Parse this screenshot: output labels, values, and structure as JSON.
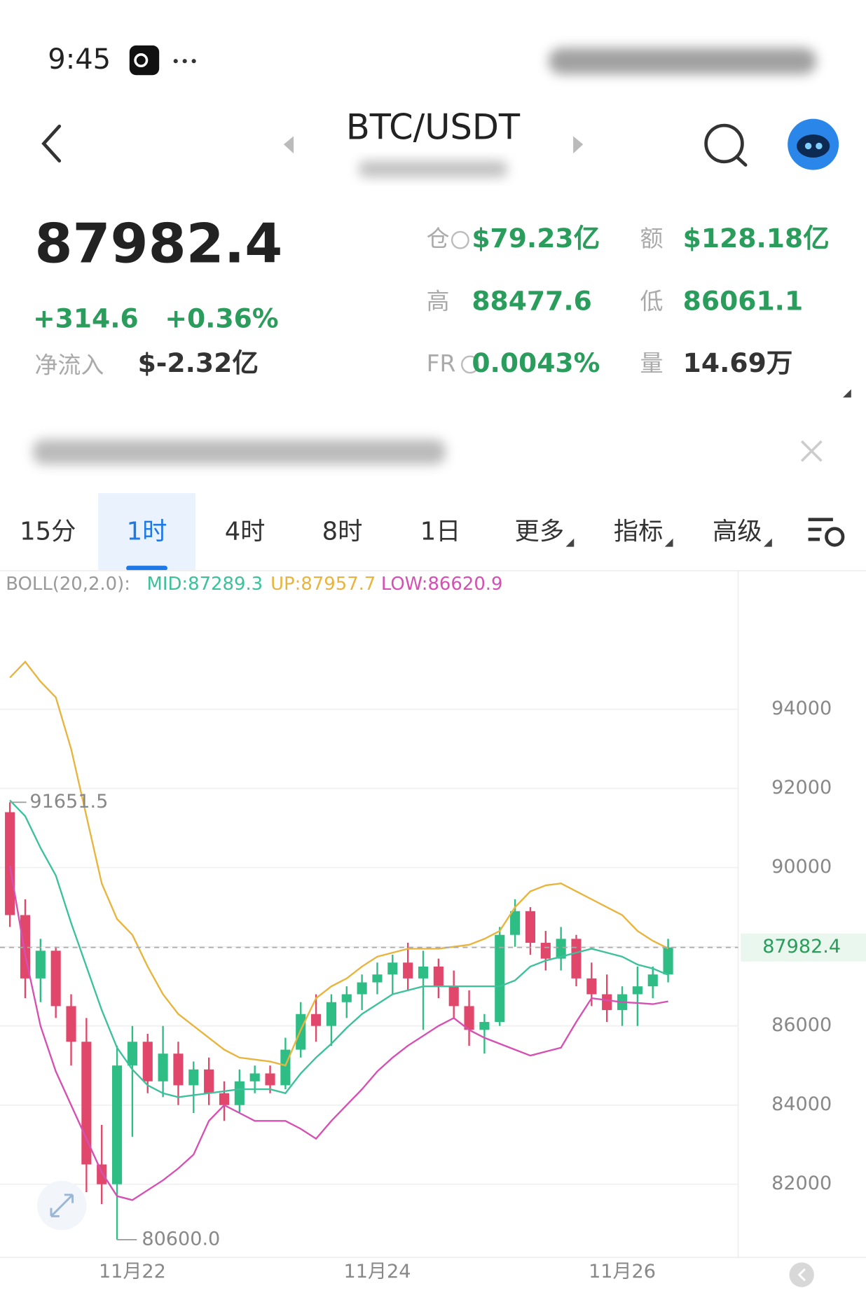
{
  "status_bar": {
    "time": "9:45"
  },
  "header": {
    "title": "BTC/USDT"
  },
  "ticker": {
    "price": "87982.4",
    "change": "+314.6",
    "change_pct": "+0.36%",
    "net_inflow_label": "净流入",
    "net_inflow": "$-2.32亿",
    "stats": [
      {
        "label": "仓",
        "value": "$79.23亿"
      },
      {
        "label": "额",
        "value": "$128.18亿"
      },
      {
        "label": "高",
        "value": "88477.6"
      },
      {
        "label": "低",
        "value": "86061.1"
      },
      {
        "label": "FR",
        "value": "0.0043%"
      },
      {
        "label": "量",
        "value": "14.69万"
      }
    ]
  },
  "tabs": {
    "items": [
      "15分",
      "1时",
      "4时",
      "8时",
      "1日",
      "更多",
      "指标",
      "高级"
    ],
    "active": 1
  },
  "chart_data": {
    "type": "candlestick",
    "indicator_label": "BOLL(20,2.0):",
    "up_color": "#2ebd85",
    "down_color": "#e0476a",
    "ylim": [
      80150,
      97440
    ],
    "yticks": [
      82000,
      84000,
      86000,
      88000,
      90000,
      92000,
      94000
    ],
    "grid": true,
    "categories": [
      null,
      null,
      null,
      null,
      null,
      null,
      null,
      null,
      "11月22",
      null,
      null,
      null,
      null,
      null,
      null,
      null,
      null,
      null,
      null,
      null,
      null,
      null,
      null,
      null,
      "11月24",
      null,
      null,
      null,
      null,
      null,
      null,
      null,
      null,
      null,
      null,
      null,
      null,
      null,
      null,
      null,
      "11月26",
      null,
      null,
      null
    ],
    "open": [
      91400,
      88800,
      87200,
      87900,
      86500,
      85600,
      82500,
      82000,
      85000,
      85600,
      84600,
      85300,
      84500,
      84900,
      84300,
      84000,
      84600,
      84800,
      84500,
      85400,
      86300,
      86000,
      86600,
      86800,
      87100,
      87300,
      87600,
      87200,
      87500,
      87000,
      86500,
      85900,
      86100,
      88300,
      88900,
      88100,
      87700,
      88200,
      87200,
      86800,
      86400,
      86800,
      87000,
      87300
    ],
    "high": [
      91651.5,
      89200,
      88200,
      88000,
      86800,
      86200,
      83500,
      85500,
      86000,
      85800,
      86000,
      85600,
      85100,
      85200,
      84600,
      84900,
      85000,
      85000,
      85700,
      86600,
      86800,
      86800,
      87000,
      87300,
      87600,
      87800,
      88100,
      87900,
      87700,
      87400,
      86900,
      86300,
      88500,
      89200,
      89000,
      88400,
      88500,
      88300,
      87600,
      87300,
      87000,
      87500,
      87500,
      88200
    ],
    "low": [
      88500,
      86700,
      86600,
      86200,
      85000,
      81800,
      81500,
      80600,
      83200,
      84300,
      84200,
      84000,
      83800,
      84000,
      83600,
      83800,
      84300,
      84300,
      84400,
      85200,
      85600,
      85500,
      86200,
      86400,
      86800,
      86800,
      86900,
      85900,
      86700,
      86200,
      85500,
      85300,
      86000,
      88000,
      87800,
      87400,
      87400,
      87000,
      86500,
      86100,
      86000,
      86000,
      86700,
      87100
    ],
    "close": [
      88800,
      87200,
      87900,
      86500,
      85600,
      82500,
      82000,
      85000,
      85600,
      84600,
      85300,
      84500,
      84900,
      84300,
      84000,
      84600,
      84800,
      84500,
      85400,
      86300,
      86000,
      86600,
      86800,
      87100,
      87300,
      87600,
      87200,
      87500,
      87000,
      86500,
      85900,
      86100,
      88300,
      88900,
      88100,
      87700,
      88200,
      87200,
      86800,
      86400,
      86800,
      87000,
      87300,
      87982.4
    ],
    "max_label": "91651.5",
    "min_label": "80600.0",
    "last_price_label": "87982.4",
    "series": [
      {
        "label": "MID:87289.3",
        "color": "#3cc19c",
        "values": [
          91700,
          91300,
          90500,
          89800,
          88600,
          87500,
          86400,
          85450,
          84900,
          84500,
          84300,
          84200,
          84250,
          84300,
          84350,
          84400,
          84400,
          84400,
          84300,
          84800,
          85200,
          85550,
          85950,
          86300,
          86550,
          86800,
          86900,
          87000,
          87000,
          87000,
          87000,
          87000,
          87000,
          87150,
          87500,
          87650,
          87750,
          87850,
          87950,
          87850,
          87750,
          87550,
          87450,
          87289.3
        ]
      },
      {
        "label": "UP:87957.7",
        "color": "#e9b43c",
        "values": [
          94800,
          95200,
          94700,
          94300,
          93000,
          91300,
          89600,
          88700,
          88300,
          87500,
          86800,
          86300,
          86000,
          85700,
          85400,
          85200,
          85150,
          85100,
          85000,
          85900,
          86700,
          87000,
          87200,
          87500,
          87750,
          87850,
          87950,
          87950,
          87950,
          88000,
          88050,
          88200,
          88400,
          89000,
          89400,
          89550,
          89600,
          89400,
          89200,
          89000,
          88800,
          88400,
          88150,
          87957.7
        ]
      },
      {
        "label": "LOW:86620.9",
        "color": "#d64fb3",
        "values": [
          90050,
          87800,
          86000,
          84850,
          84000,
          83150,
          82300,
          81700,
          81600,
          81850,
          82100,
          82400,
          82750,
          83600,
          84000,
          83800,
          83600,
          83600,
          83600,
          83400,
          83150,
          83600,
          84000,
          84400,
          84850,
          85200,
          85500,
          85750,
          86000,
          86200,
          85900,
          85700,
          85550,
          85400,
          85250,
          85350,
          85450,
          86100,
          86700,
          86650,
          86600,
          86580,
          86550,
          86620.9
        ]
      }
    ]
  }
}
